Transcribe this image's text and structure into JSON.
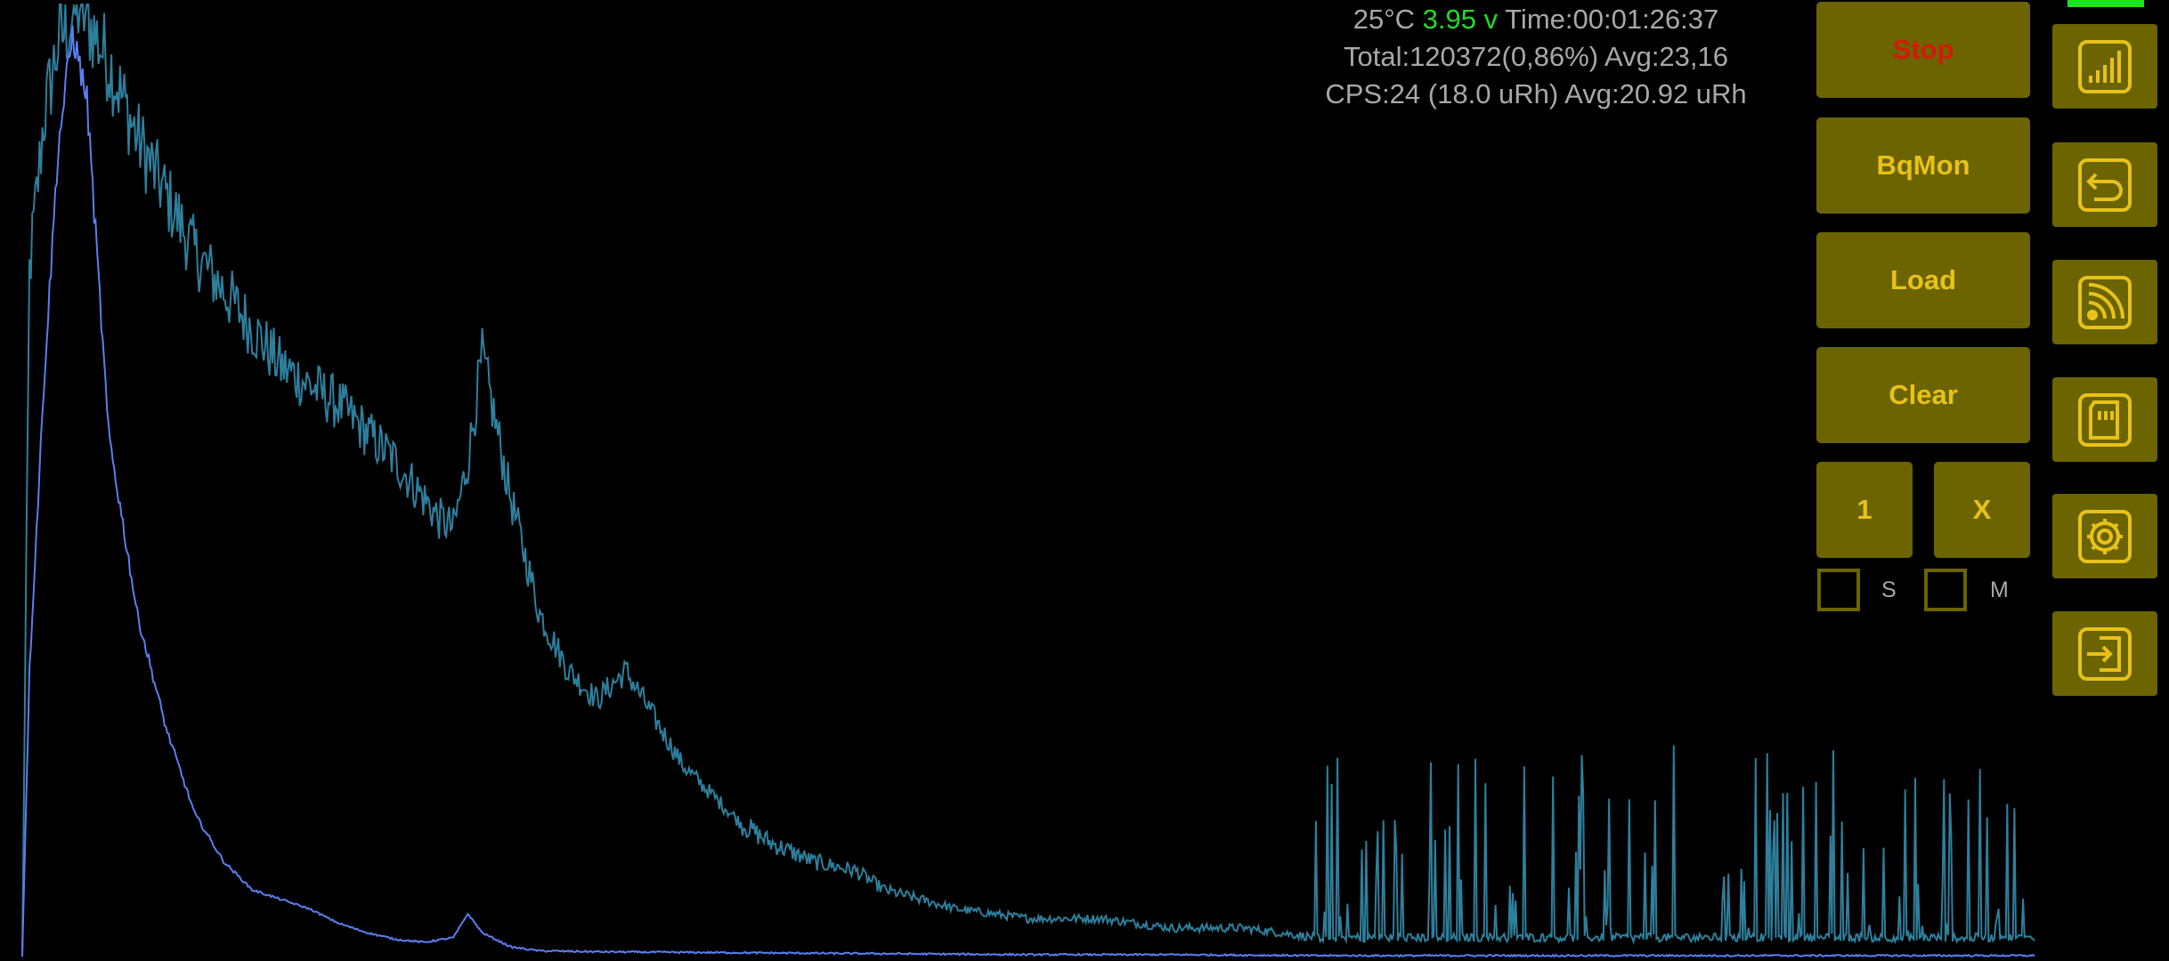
{
  "status": {
    "temperature": "25°C",
    "voltage": "3.95 v",
    "time": "Time:00:01:26:37",
    "total": "Total:120372(0,86%) Avg:23,16",
    "cps": "CPS:24 (18.0 uRh) Avg:20.92 uRh"
  },
  "buttons": {
    "stop": "Stop",
    "bqmon": "BqMon",
    "load": "Load",
    "clear": "Clear",
    "one": "1",
    "x": "X"
  },
  "checkboxes": {
    "s_label": "S",
    "m_label": "M"
  },
  "colors": {
    "background": "#000000",
    "button_fill": "#6b6400",
    "button_text": "#e8c21a",
    "stop_text": "#d21a0a",
    "voltage_text": "#22dd22",
    "status_text": "#a8a8a8",
    "series_log": "#2e7f9c",
    "series_linear": "#5b7ef0",
    "battery_indicator": "#1de51d"
  },
  "icons": [
    "signal-bars-icon",
    "back-arrow-icon",
    "rss-feed-icon",
    "sd-card-icon",
    "gear-icon",
    "exit-icon"
  ],
  "chart_data": {
    "type": "line",
    "title": "",
    "xlabel": "",
    "ylabel": "",
    "grid": false,
    "legend": "none",
    "series": [
      {
        "color": "#2e7f9c",
        "x": [
          0,
          5,
          15,
          25,
          40,
          60,
          80,
          100,
          120,
          140,
          160,
          180,
          200,
          220,
          240,
          260,
          280,
          290,
          300,
          310,
          320,
          340,
          360,
          380,
          400,
          420,
          440,
          460,
          480,
          500,
          520,
          550,
          580,
          600,
          650,
          700,
          750,
          800,
          850,
          900,
          1000,
          1100,
          1200,
          1300,
          1400
        ],
        "y": [
          0.0,
          0.72,
          0.88,
          0.96,
          1.0,
          0.94,
          0.86,
          0.8,
          0.74,
          0.7,
          0.66,
          0.62,
          0.6,
          0.58,
          0.55,
          0.52,
          0.48,
          0.46,
          0.45,
          0.52,
          0.63,
          0.48,
          0.36,
          0.3,
          0.27,
          0.3,
          0.25,
          0.2,
          0.17,
          0.14,
          0.12,
          0.1,
          0.09,
          0.07,
          0.05,
          0.04,
          0.04,
          0.03,
          0.03,
          0.02,
          0.02,
          0.02,
          0.02,
          0.02,
          0.02
        ]
      },
      {
        "color": "#5b7ef0",
        "x": [
          0,
          5,
          15,
          25,
          35,
          45,
          60,
          80,
          100,
          120,
          140,
          160,
          180,
          200,
          220,
          240,
          260,
          280,
          300,
          310,
          320,
          340,
          360,
          400,
          500,
          600,
          700,
          800,
          900,
          1000,
          1100,
          1200,
          1300,
          1400
        ],
        "y": [
          0.0,
          0.3,
          0.6,
          0.85,
          0.97,
          0.9,
          0.55,
          0.36,
          0.24,
          0.15,
          0.1,
          0.07,
          0.06,
          0.05,
          0.035,
          0.025,
          0.018,
          0.015,
          0.02,
          0.045,
          0.025,
          0.01,
          0.006,
          0.005,
          0.004,
          0.003,
          0.002,
          0.002,
          0.001,
          0.001,
          0.001,
          0.001,
          0.001,
          0.001
        ]
      }
    ]
  }
}
